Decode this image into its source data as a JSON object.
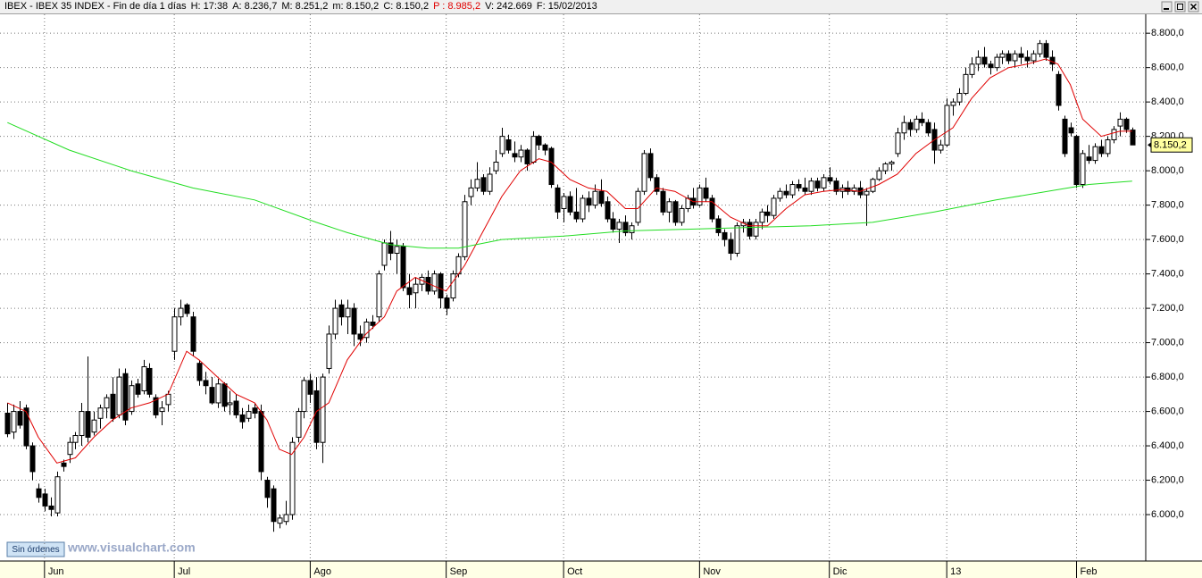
{
  "header": [
    "IBEX - IBEX 35 INDEX - Fin de día 1 días",
    "H: 17:38",
    "A: 8.236,7",
    "M: 8.251,2",
    "m: 8.150,2",
    "C: 8.150,2",
    "P : 8.985,2",
    "V: 242.669",
    "F: 15/02/2013"
  ],
  "footer": {
    "button": "Sin órdenes",
    "watermark": "www.visualchart.com"
  },
  "chart_data": {
    "type": "candlestick",
    "ylim": [
      5730,
      8910
    ],
    "yticks": [
      {
        "value": 6000,
        "label": "6.000,0"
      },
      {
        "value": 6200,
        "label": "6.200,0"
      },
      {
        "value": 6400,
        "label": "6.400,0"
      },
      {
        "value": 6600,
        "label": "6.600,0"
      },
      {
        "value": 6800,
        "label": "6.800,0"
      },
      {
        "value": 7000,
        "label": "7.000,0"
      },
      {
        "value": 7200,
        "label": "7.200,0"
      },
      {
        "value": 7400,
        "label": "7.400,0"
      },
      {
        "value": 7600,
        "label": "7.600,0"
      },
      {
        "value": 7800,
        "label": "7.800,0"
      },
      {
        "value": 8000,
        "label": "8.000,0"
      },
      {
        "value": 8200,
        "label": "8.200,0"
      },
      {
        "value": 8400,
        "label": "8.400,0"
      },
      {
        "value": 8600,
        "label": "8.600,0"
      },
      {
        "value": 8800,
        "label": "8.800,0"
      }
    ],
    "xlim": [
      -1.2,
      184.2
    ],
    "xticks": [
      {
        "value": 6,
        "label": "Jun"
      },
      {
        "value": 27,
        "label": "Jul"
      },
      {
        "value": 49,
        "label": "Ago"
      },
      {
        "value": 71,
        "label": "Sep"
      },
      {
        "value": 90,
        "label": "Oct"
      },
      {
        "value": 112,
        "label": "Nov"
      },
      {
        "value": 133,
        "label": "Dic"
      },
      {
        "value": 152,
        "label": "13"
      },
      {
        "value": 173,
        "label": "Feb"
      }
    ],
    "grid": true,
    "price_tag": {
      "value": 8150.2,
      "label": "8.150,2"
    },
    "ohlc": [
      [
        6590,
        6650,
        6450,
        6470
      ],
      [
        6480,
        6640,
        6440,
        6600
      ],
      [
        6600,
        6660,
        6500,
        6520
      ],
      [
        6620,
        6640,
        6380,
        6400
      ],
      [
        6400,
        6420,
        6200,
        6250
      ],
      [
        6150,
        6180,
        6070,
        6100
      ],
      [
        6120,
        6150,
        6020,
        6050
      ],
      [
        6050,
        6100,
        5990,
        6030
      ],
      [
        6010,
        6250,
        5990,
        6220
      ],
      [
        6300,
        6320,
        6250,
        6280
      ],
      [
        6350,
        6450,
        6300,
        6420
      ],
      [
        6420,
        6480,
        6380,
        6460
      ],
      [
        6460,
        6650,
        6400,
        6600
      ],
      [
        6600,
        6920,
        6420,
        6450
      ],
      [
        6480,
        6600,
        6460,
        6550
      ],
      [
        6560,
        6640,
        6500,
        6620
      ],
      [
        6620,
        6700,
        6560,
        6680
      ],
      [
        6700,
        6800,
        6540,
        6560
      ],
      [
        6580,
        6850,
        6560,
        6800
      ],
      [
        6820,
        6850,
        6520,
        6550
      ],
      [
        6600,
        6780,
        6580,
        6750
      ],
      [
        6760,
        6790,
        6680,
        6700
      ],
      [
        6720,
        6900,
        6700,
        6860
      ],
      [
        6850,
        6880,
        6680,
        6700
      ],
      [
        6680,
        6700,
        6560,
        6580
      ],
      [
        6600,
        6660,
        6520,
        6620
      ],
      [
        6640,
        6720,
        6600,
        6700
      ],
      [
        6950,
        7200,
        6900,
        7150
      ],
      [
        7150,
        7250,
        7100,
        7200
      ],
      [
        7220,
        7230,
        7150,
        7170
      ],
      [
        7150,
        7180,
        6920,
        6950
      ],
      [
        6880,
        6900,
        6750,
        6780
      ],
      [
        6780,
        6830,
        6700,
        6750
      ],
      [
        6740,
        6800,
        6640,
        6650
      ],
      [
        6650,
        6790,
        6620,
        6760
      ],
      [
        6760,
        6770,
        6600,
        6630
      ],
      [
        6640,
        6720,
        6580,
        6650
      ],
      [
        6660,
        6700,
        6560,
        6580
      ],
      [
        6580,
        6620,
        6500,
        6540
      ],
      [
        6560,
        6640,
        6540,
        6600
      ],
      [
        6620,
        6650,
        6560,
        6590
      ],
      [
        6600,
        6640,
        6200,
        6250
      ],
      [
        6200,
        6220,
        6040,
        6100
      ],
      [
        6150,
        6170,
        5900,
        5960
      ],
      [
        5950,
        6000,
        5920,
        5980
      ],
      [
        5960,
        6080,
        5940,
        6000
      ],
      [
        6000,
        6450,
        5970,
        6420
      ],
      [
        6450,
        6620,
        6420,
        6600
      ],
      [
        6600,
        6800,
        6560,
        6780
      ],
      [
        6780,
        6820,
        6650,
        6700
      ],
      [
        6720,
        6800,
        6380,
        6420
      ],
      [
        6420,
        6820,
        6300,
        6800
      ],
      [
        6850,
        7100,
        6820,
        7050
      ],
      [
        7050,
        7250,
        7020,
        7200
      ],
      [
        7220,
        7250,
        7100,
        7150
      ],
      [
        7150,
        7250,
        7050,
        7200
      ],
      [
        7200,
        7230,
        6980,
        7050
      ],
      [
        7050,
        7100,
        6980,
        7020
      ],
      [
        7030,
        7140,
        7000,
        7120
      ],
      [
        7120,
        7160,
        7080,
        7100
      ],
      [
        7150,
        7420,
        7120,
        7400
      ],
      [
        7450,
        7600,
        7420,
        7580
      ],
      [
        7580,
        7650,
        7480,
        7520
      ],
      [
        7520,
        7600,
        7400,
        7560
      ],
      [
        7560,
        7580,
        7300,
        7320
      ],
      [
        7320,
        7400,
        7200,
        7280
      ],
      [
        7290,
        7380,
        7200,
        7340
      ],
      [
        7340,
        7400,
        7300,
        7380
      ],
      [
        7380,
        7420,
        7280,
        7300
      ],
      [
        7300,
        7420,
        7280,
        7400
      ],
      [
        7400,
        7410,
        7200,
        7260
      ],
      [
        7260,
        7280,
        7160,
        7200
      ],
      [
        7260,
        7420,
        7240,
        7400
      ],
      [
        7400,
        7520,
        7380,
        7500
      ],
      [
        7500,
        7860,
        7480,
        7820
      ],
      [
        7850,
        7950,
        7800,
        7900
      ],
      [
        7900,
        8050,
        7880,
        7950
      ],
      [
        7960,
        7980,
        7860,
        7880
      ],
      [
        7880,
        8020,
        7860,
        7980
      ],
      [
        8000,
        8120,
        7980,
        8050
      ],
      [
        8100,
        8250,
        8080,
        8200
      ],
      [
        8180,
        8210,
        8100,
        8120
      ],
      [
        8100,
        8170,
        8050,
        8080
      ],
      [
        8080,
        8150,
        8050,
        8120
      ],
      [
        8120,
        8130,
        8000,
        8040
      ],
      [
        8050,
        8230,
        8040,
        8200
      ],
      [
        8200,
        8210,
        8120,
        8150
      ],
      [
        8150,
        8160,
        8090,
        8120
      ],
      [
        8130,
        8140,
        7900,
        7920
      ],
      [
        7900,
        7920,
        7720,
        7760
      ],
      [
        7780,
        7870,
        7700,
        7850
      ],
      [
        7850,
        7880,
        7740,
        7760
      ],
      [
        7760,
        7900,
        7700,
        7720
      ],
      [
        7720,
        7860,
        7700,
        7840
      ],
      [
        7840,
        7880,
        7760,
        7800
      ],
      [
        7800,
        7920,
        7780,
        7880
      ],
      [
        7880,
        7950,
        7790,
        7810
      ],
      [
        7820,
        7850,
        7700,
        7720
      ],
      [
        7720,
        7760,
        7640,
        7660
      ],
      [
        7660,
        7720,
        7580,
        7700
      ],
      [
        7700,
        7740,
        7620,
        7640
      ],
      [
        7640,
        7700,
        7600,
        7680
      ],
      [
        7700,
        7900,
        7680,
        7880
      ],
      [
        7880,
        8120,
        7860,
        8100
      ],
      [
        8100,
        8130,
        7940,
        7960
      ],
      [
        7960,
        7980,
        7860,
        7880
      ],
      [
        7880,
        7900,
        7740,
        7760
      ],
      [
        7760,
        7840,
        7700,
        7820
      ],
      [
        7820,
        7830,
        7680,
        7700
      ],
      [
        7700,
        7800,
        7680,
        7780
      ],
      [
        7780,
        7860,
        7760,
        7840
      ],
      [
        7840,
        7900,
        7780,
        7800
      ],
      [
        7800,
        7920,
        7790,
        7900
      ],
      [
        7900,
        7960,
        7820,
        7840
      ],
      [
        7840,
        7860,
        7700,
        7720
      ],
      [
        7720,
        7740,
        7620,
        7640
      ],
      [
        7640,
        7660,
        7560,
        7600
      ],
      [
        7600,
        7640,
        7480,
        7520
      ],
      [
        7520,
        7700,
        7500,
        7680
      ],
      [
        7680,
        7720,
        7640,
        7700
      ],
      [
        7700,
        7720,
        7600,
        7620
      ],
      [
        7620,
        7720,
        7600,
        7700
      ],
      [
        7700,
        7780,
        7660,
        7760
      ],
      [
        7760,
        7800,
        7700,
        7740
      ],
      [
        7740,
        7860,
        7720,
        7840
      ],
      [
        7840,
        7900,
        7820,
        7880
      ],
      [
        7880,
        7920,
        7840,
        7860
      ],
      [
        7860,
        7940,
        7840,
        7920
      ],
      [
        7920,
        7950,
        7880,
        7900
      ],
      [
        7900,
        7960,
        7860,
        7880
      ],
      [
        7880,
        7960,
        7860,
        7940
      ],
      [
        7940,
        7960,
        7880,
        7900
      ],
      [
        7900,
        7980,
        7880,
        7960
      ],
      [
        7960,
        8020,
        7920,
        7940
      ],
      [
        7940,
        7960,
        7860,
        7880
      ],
      [
        7880,
        7920,
        7840,
        7900
      ],
      [
        7900,
        7940,
        7860,
        7880
      ],
      [
        7880,
        7920,
        7860,
        7900
      ],
      [
        7900,
        7940,
        7840,
        7860
      ],
      [
        7860,
        7900,
        7680,
        7880
      ],
      [
        7880,
        7960,
        7870,
        7950
      ],
      [
        7950,
        8020,
        7940,
        8000
      ],
      [
        8000,
        8050,
        7980,
        8040
      ],
      [
        8040,
        8060,
        8000,
        8050
      ],
      [
        8100,
        8250,
        8080,
        8220
      ],
      [
        8220,
        8320,
        8180,
        8280
      ],
      [
        8280,
        8300,
        8200,
        8240
      ],
      [
        8240,
        8320,
        8220,
        8300
      ],
      [
        8300,
        8340,
        8260,
        8280
      ],
      [
        8280,
        8300,
        8200,
        8220
      ],
      [
        8240,
        8280,
        8040,
        8120
      ],
      [
        8120,
        8180,
        8100,
        8150
      ],
      [
        8150,
        8420,
        8140,
        8380
      ],
      [
        8380,
        8420,
        8320,
        8400
      ],
      [
        8400,
        8480,
        8380,
        8450
      ],
      [
        8450,
        8600,
        8440,
        8560
      ],
      [
        8560,
        8660,
        8540,
        8620
      ],
      [
        8620,
        8700,
        8580,
        8660
      ],
      [
        8660,
        8720,
        8600,
        8620
      ],
      [
        8620,
        8640,
        8560,
        8600
      ],
      [
        8600,
        8680,
        8580,
        8660
      ],
      [
        8660,
        8700,
        8620,
        8680
      ],
      [
        8680,
        8700,
        8620,
        8640
      ],
      [
        8640,
        8700,
        8600,
        8680
      ],
      [
        8680,
        8720,
        8620,
        8660
      ],
      [
        8660,
        8700,
        8600,
        8640
      ],
      [
        8640,
        8700,
        8620,
        8680
      ],
      [
        8680,
        8760,
        8660,
        8740
      ],
      [
        8740,
        8760,
        8640,
        8660
      ],
      [
        8660,
        8700,
        8580,
        8620
      ],
      [
        8560,
        8580,
        8350,
        8380
      ],
      [
        8300,
        8320,
        8080,
        8100
      ],
      [
        8250,
        8280,
        8200,
        8220
      ],
      [
        8200,
        8210,
        7900,
        7920
      ],
      [
        7920,
        8120,
        7900,
        8100
      ],
      [
        8080,
        8150,
        8040,
        8060
      ],
      [
        8060,
        8160,
        8040,
        8140
      ],
      [
        8140,
        8180,
        8080,
        8100
      ],
      [
        8100,
        8200,
        8080,
        8180
      ],
      [
        8180,
        8260,
        8160,
        8240
      ],
      [
        8260,
        8340,
        8200,
        8300
      ],
      [
        8300,
        8310,
        8220,
        8240
      ],
      [
        8236.7,
        8251.2,
        8150.2,
        8150.2
      ]
    ],
    "series": [
      {
        "color": "#e00000",
        "x": [
          0,
          3,
          5,
          8,
          11,
          14,
          17,
          20,
          23,
          26,
          29,
          31,
          34,
          37,
          40,
          42,
          44,
          46,
          48,
          50,
          52,
          55,
          58,
          61,
          63,
          66,
          69,
          71,
          74,
          77,
          80,
          83,
          86,
          88,
          91,
          94,
          97,
          100,
          102,
          105,
          108,
          111,
          114,
          117,
          120,
          123,
          126,
          129,
          132,
          135,
          138,
          141,
          144,
          147,
          150,
          153,
          156,
          159,
          162,
          165,
          168,
          170,
          172,
          174,
          177,
          180,
          182
        ],
        "values": [
          6650,
          6600,
          6450,
          6300,
          6330,
          6450,
          6550,
          6620,
          6650,
          6700,
          6950,
          6900,
          6800,
          6700,
          6650,
          6550,
          6380,
          6350,
          6450,
          6600,
          6650,
          6900,
          7050,
          7150,
          7300,
          7380,
          7330,
          7300,
          7450,
          7650,
          7850,
          8000,
          8070,
          8050,
          7950,
          7900,
          7880,
          7780,
          7780,
          7900,
          7880,
          7820,
          7820,
          7730,
          7680,
          7680,
          7780,
          7860,
          7880,
          7890,
          7880,
          7920,
          7980,
          8100,
          8180,
          8250,
          8420,
          8540,
          8600,
          8620,
          8650,
          8620,
          8500,
          8300,
          8200,
          8230,
          8230
        ]
      },
      {
        "color": "#22dd22",
        "x": [
          0,
          10,
          20,
          30,
          40,
          50,
          55,
          62,
          68,
          73,
          80,
          90,
          100,
          110,
          120,
          130,
          140,
          150,
          160,
          170,
          175,
          182
        ],
        "values": [
          8280,
          8120,
          8000,
          7900,
          7830,
          7700,
          7640,
          7570,
          7550,
          7550,
          7600,
          7620,
          7650,
          7660,
          7670,
          7680,
          7700,
          7760,
          7830,
          7890,
          7920,
          7940
        ]
      }
    ]
  }
}
